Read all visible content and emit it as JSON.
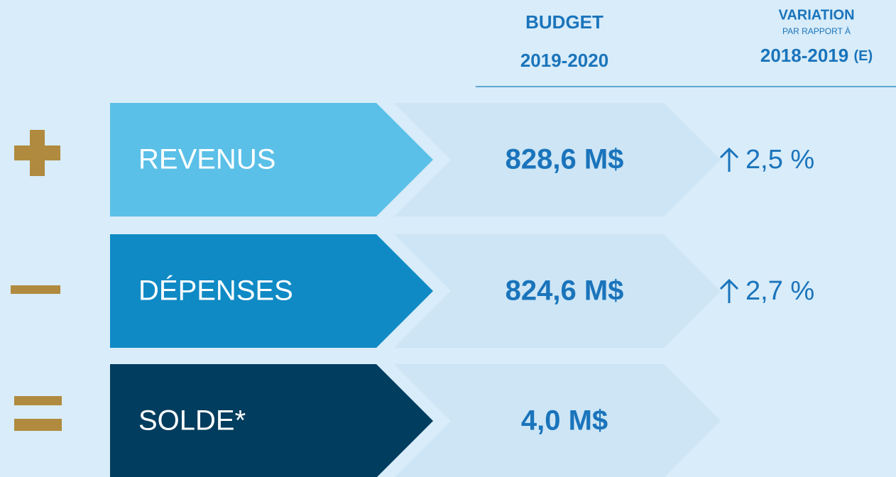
{
  "header": {
    "budget": {
      "line1": "BUDGET",
      "line2": "2019-2020"
    },
    "variation": {
      "line1": "VARIATION",
      "line2": "PAR RAPPORT À",
      "line3": "2018-2019",
      "line3_suffix": "(E)"
    }
  },
  "rows": [
    {
      "label": "REVENUS",
      "budget": "828,6 M$",
      "variation": "2,5 %"
    },
    {
      "label": "DÉPENSES",
      "budget": "824,6 M$",
      "variation": "2,7 %"
    },
    {
      "label": "SOLDE*",
      "budget": "4,0 M$"
    }
  ]
}
